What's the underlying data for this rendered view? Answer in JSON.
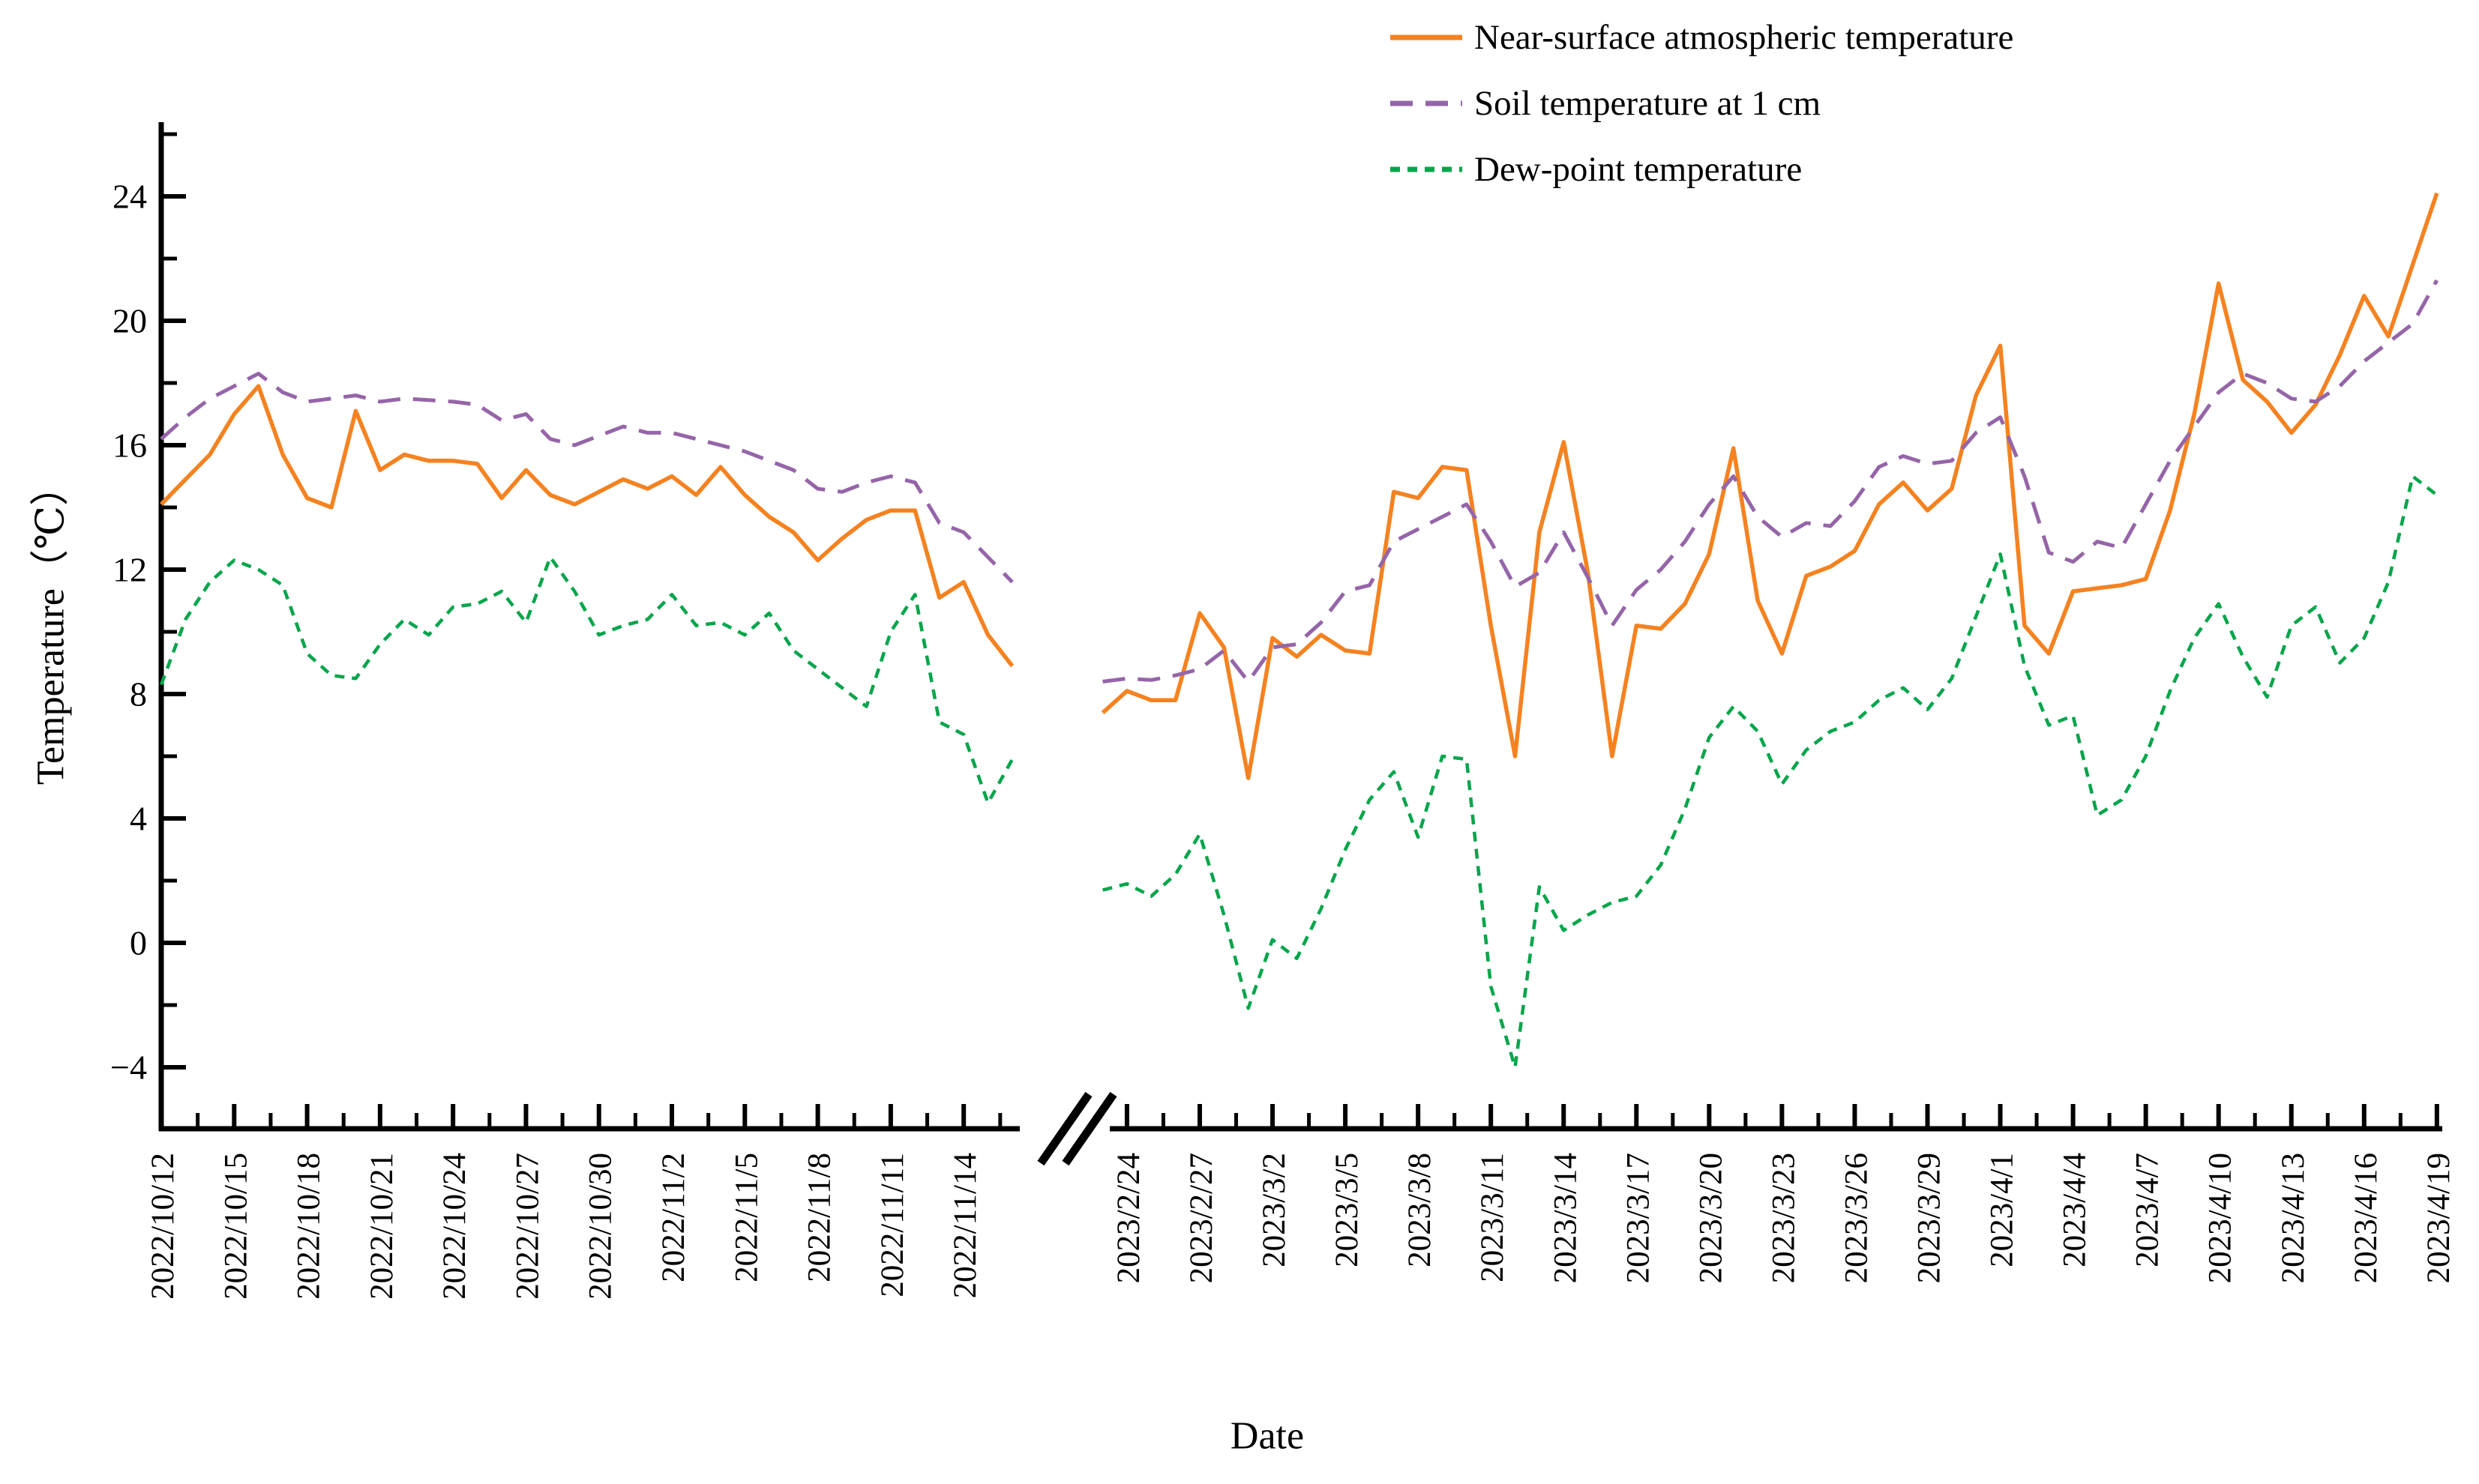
{
  "figure": {
    "background": "#ffffff"
  },
  "axes": {
    "x_title": "Date",
    "y_title": "Temperature（℃）",
    "y_tick_labels": [
      "−4",
      "0",
      "4",
      "8",
      "12",
      "16",
      "20",
      "24"
    ],
    "axis_color": "#000000"
  },
  "chart_data": {
    "type": "line",
    "title": "",
    "xlabel": "Date",
    "ylabel": "Temperature（℃）",
    "ylim": [
      -6,
      26.3
    ],
    "grid": false,
    "legend_position": "top-right",
    "axis_break": true,
    "yticks_major": [
      -4,
      0,
      4,
      8,
      12,
      16,
      20,
      24
    ],
    "yticks_minor": [
      -2,
      2,
      6,
      10,
      14,
      18,
      22,
      26
    ],
    "series_meta": [
      {
        "key": "near_surface",
        "label": "Near-surface atmospheric temperature",
        "color": "#F58220",
        "style": "solid",
        "width": 5.5,
        "dash": ""
      },
      {
        "key": "soil_1cm",
        "label": "Soil temperature at 1 cm",
        "color": "#9565A8",
        "style": "long-dash",
        "width": 5,
        "dash": "30 17"
      },
      {
        "key": "dew_point",
        "label": "Dew-point temperature",
        "color": "#05A54B",
        "style": "short-dash",
        "width": 4.5,
        "dash": "13 10"
      }
    ],
    "segments": [
      {
        "name": "autumn-2022",
        "start_date": "2022/10/12",
        "tick_labels": [
          "2022/10/12",
          "2022/10/15",
          "2022/10/18",
          "2022/10/21",
          "2022/10/24",
          "2022/10/27",
          "2022/10/30",
          "2022/11/2",
          "2022/11/5",
          "2022/11/8",
          "2022/11/11",
          "2022/11/14"
        ],
        "tick_indices": [
          0,
          3,
          6,
          9,
          12,
          15,
          18,
          21,
          24,
          27,
          30,
          33
        ],
        "series": {
          "near_surface": [
            14.1,
            14.9,
            15.7,
            17.0,
            17.9,
            15.7,
            14.3,
            14.0,
            17.1,
            15.2,
            15.7,
            15.5,
            15.5,
            15.4,
            14.3,
            15.2,
            14.4,
            14.1,
            14.5,
            14.9,
            14.6,
            15.0,
            14.4,
            15.3,
            14.4,
            13.7,
            13.2,
            12.3,
            13.0,
            13.6,
            13.9,
            13.9,
            11.1,
            11.6,
            9.9,
            8.9
          ],
          "soil_1cm": [
            16.2,
            16.9,
            17.5,
            17.9,
            18.3,
            17.7,
            17.4,
            17.5,
            17.6,
            17.4,
            17.5,
            17.45,
            17.4,
            17.3,
            16.8,
            17.0,
            16.2,
            16.0,
            16.3,
            16.6,
            16.4,
            16.4,
            16.2,
            16.0,
            15.8,
            15.5,
            15.2,
            14.6,
            14.5,
            14.8,
            15.0,
            14.8,
            13.5,
            13.2,
            12.4,
            11.6
          ],
          "dew_point": [
            8.3,
            10.4,
            11.6,
            12.3,
            12.0,
            11.5,
            9.3,
            8.6,
            8.5,
            9.6,
            10.4,
            9.9,
            10.8,
            10.9,
            11.3,
            10.3,
            12.4,
            11.3,
            9.9,
            10.2,
            10.4,
            11.2,
            10.2,
            10.3,
            9.9,
            10.6,
            9.4,
            8.8,
            8.2,
            7.6,
            10.0,
            11.2,
            7.1,
            6.7,
            4.5,
            5.9
          ]
        }
      },
      {
        "name": "spring-2023",
        "start_date": "2023/2/23",
        "tick_labels": [
          "2023/2/24",
          "2023/2/27",
          "2023/3/2",
          "2023/3/5",
          "2023/3/8",
          "2023/3/11",
          "2023/3/14",
          "2023/3/17",
          "2023/3/20",
          "2023/3/23",
          "2023/3/26",
          "2023/3/29",
          "2023/4/1",
          "2023/4/4",
          "2023/4/7",
          "2023/4/10",
          "2023/4/13",
          "2023/4/16",
          "2023/4/19"
        ],
        "tick_indices": [
          1,
          4,
          7,
          10,
          13,
          16,
          19,
          22,
          25,
          28,
          31,
          34,
          37,
          40,
          43,
          46,
          49,
          52,
          55
        ],
        "series": {
          "near_surface": [
            7.4,
            8.1,
            7.8,
            7.8,
            10.6,
            9.5,
            5.3,
            9.8,
            9.2,
            9.9,
            9.4,
            9.3,
            14.5,
            14.3,
            15.3,
            15.2,
            10.2,
            6.0,
            13.2,
            16.1,
            11.9,
            6.0,
            10.2,
            10.1,
            10.9,
            12.5,
            15.9,
            11.0,
            9.3,
            11.8,
            12.1,
            12.6,
            14.1,
            14.8,
            13.9,
            14.6,
            17.6,
            19.2,
            10.2,
            9.3,
            11.3,
            11.4,
            11.5,
            11.7,
            13.9,
            17.0,
            21.2,
            18.1,
            17.4,
            16.4,
            17.3,
            18.9,
            20.8,
            19.5,
            21.8,
            24.1
          ],
          "soil_1cm": [
            8.4,
            8.5,
            8.45,
            8.6,
            8.8,
            9.4,
            8.4,
            9.5,
            9.6,
            10.3,
            11.3,
            11.5,
            12.9,
            13.3,
            13.7,
            14.1,
            12.9,
            11.45,
            11.9,
            13.2,
            11.75,
            10.2,
            11.35,
            12.0,
            12.9,
            14.1,
            15.0,
            13.7,
            13.05,
            13.5,
            13.4,
            14.2,
            15.3,
            15.65,
            15.4,
            15.5,
            16.4,
            16.9,
            15.0,
            12.55,
            12.25,
            12.9,
            12.7,
            14.1,
            15.5,
            16.6,
            17.7,
            18.3,
            18.0,
            17.5,
            17.4,
            17.9,
            18.7,
            19.3,
            19.9,
            21.3
          ],
          "dew_point": [
            1.7,
            1.9,
            1.5,
            2.2,
            3.5,
            0.9,
            -2.1,
            0.1,
            -0.5,
            1.1,
            3.0,
            4.6,
            5.5,
            3.4,
            6.0,
            5.9,
            -1.4,
            -4.0,
            1.8,
            0.4,
            0.9,
            1.3,
            1.5,
            2.5,
            4.3,
            6.6,
            7.6,
            6.8,
            5.1,
            6.2,
            6.8,
            7.1,
            7.8,
            8.2,
            7.5,
            8.5,
            10.5,
            12.5,
            8.9,
            7.0,
            7.3,
            4.1,
            4.6,
            6.0,
            8.1,
            9.8,
            10.9,
            9.2,
            7.9,
            10.2,
            10.8,
            9.0,
            9.8,
            11.6,
            15.0,
            14.4
          ]
        }
      }
    ]
  }
}
